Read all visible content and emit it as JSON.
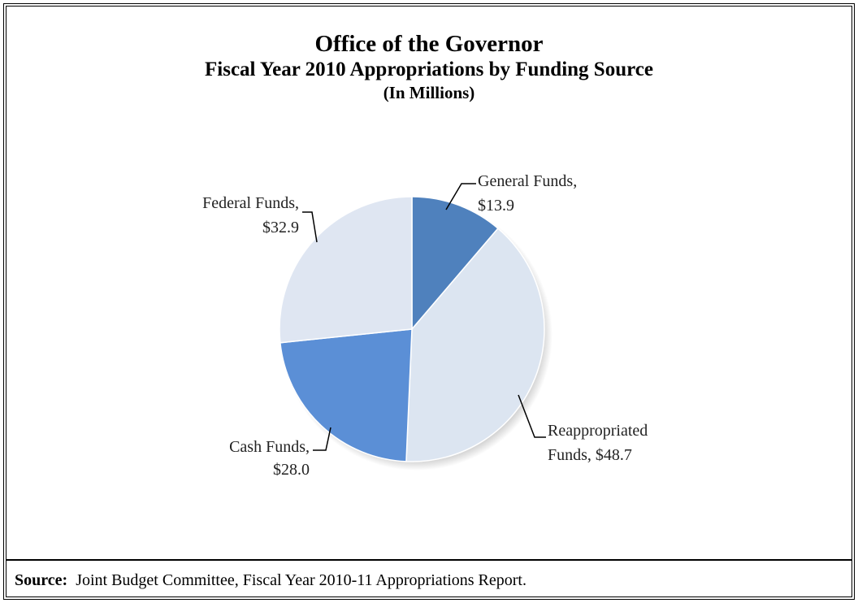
{
  "chart_data": {
    "type": "pie",
    "title": "Office of the Governor",
    "subtitle": "Fiscal Year 2010 Appropriations by Funding Source",
    "unit_note": "(In Millions)",
    "slices": [
      {
        "name": "General Funds",
        "value": 13.9,
        "label_line1": "General Funds,",
        "label_line2": "$13.9",
        "color": "#4f81bd"
      },
      {
        "name": "Reappropriated Funds",
        "value": 48.7,
        "label_line1": "Reappropriated",
        "label_line2": "Funds, $48.7",
        "color": "#dce5f1"
      },
      {
        "name": "Cash Funds",
        "value": 28.0,
        "label_line1": "Cash Funds,",
        "label_line2": "$28.0",
        "color": "#5b8fd6"
      },
      {
        "name": "Federal Funds",
        "value": 32.9,
        "label_line1": "Federal Funds,",
        "label_line2": "$32.9",
        "color": "#dfe6f2"
      }
    ]
  },
  "source": {
    "label": "Source:",
    "text": "Joint Budget Committee, Fiscal Year 2010-11 Appropriations Report."
  }
}
